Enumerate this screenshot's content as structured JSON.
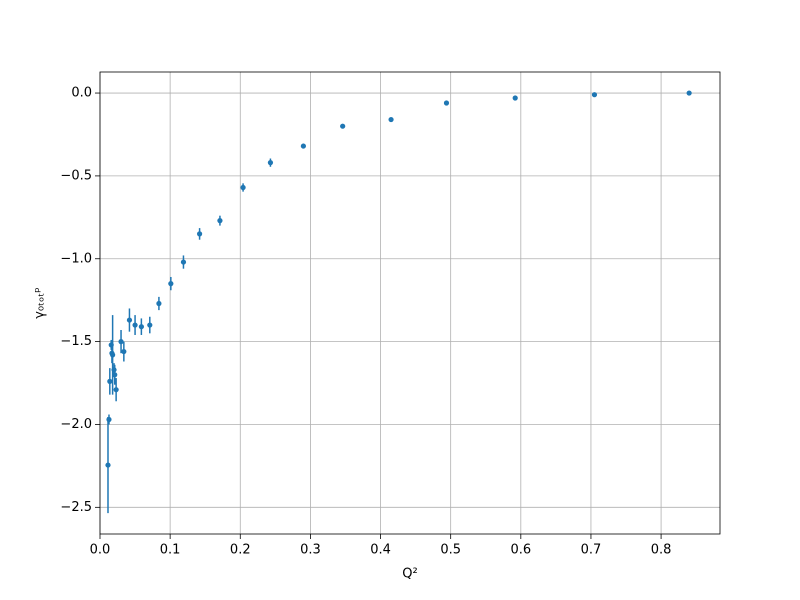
{
  "chart_data": {
    "type": "errorbar",
    "xlabel": "Q²",
    "ylabel": "γ₀ₜₒₜᵖ",
    "xlim": [
      0,
      0.884
    ],
    "ylim": [
      -2.661,
      0.127
    ],
    "xticks": [
      {
        "value": 0,
        "label": "0.0"
      },
      0.1,
      0.2,
      0.3,
      0.4,
      0.5,
      0.6,
      0.7,
      0.8
    ],
    "yticks": [
      {
        "value": -2.5,
        "label": "−2.5"
      },
      {
        "value": -2.0,
        "label": "−2.0"
      },
      {
        "value": -1.5,
        "label": "−1.5"
      },
      {
        "value": -1.0,
        "label": "−1.0"
      },
      {
        "value": -0.5,
        "label": "−0.5"
      },
      {
        "value": 0,
        "label": "0.0"
      }
    ],
    "grid": true,
    "series": [
      {
        "color": "#1f77b4",
        "x": [
          0.0114,
          0.0128,
          0.014,
          0.016,
          0.017,
          0.018,
          0.02,
          0.021,
          0.023,
          0.03,
          0.034,
          0.042,
          0.05,
          0.059,
          0.071,
          0.084,
          0.101,
          0.119,
          0.142,
          0.171,
          0.204,
          0.243,
          0.29,
          0.346,
          0.415,
          0.494,
          0.592,
          0.705,
          0.84
        ],
        "values": [
          -2.245,
          -1.97,
          -1.74,
          -1.52,
          -1.57,
          -1.58,
          -1.67,
          -1.7,
          -1.79,
          -1.5,
          -1.56,
          -1.37,
          -1.4,
          -1.41,
          -1.4,
          -1.27,
          -1.15,
          -1.02,
          -0.85,
          -0.77,
          -0.57,
          -0.42,
          -0.32,
          -0.2,
          -0.16,
          -0.06,
          -0.03,
          -0.01,
          0.0
        ],
        "errors": [
          0.29,
          0.03,
          0.08,
          0.03,
          0.06,
          0.24,
          0.04,
          0.06,
          0.07,
          0.07,
          0.06,
          0.07,
          0.06,
          0.05,
          0.05,
          0.04,
          0.04,
          0.04,
          0.035,
          0.03,
          0.025,
          0.025,
          0.015,
          0.01,
          0.008,
          0.005,
          0.005,
          0.004,
          0.003
        ]
      }
    ]
  }
}
